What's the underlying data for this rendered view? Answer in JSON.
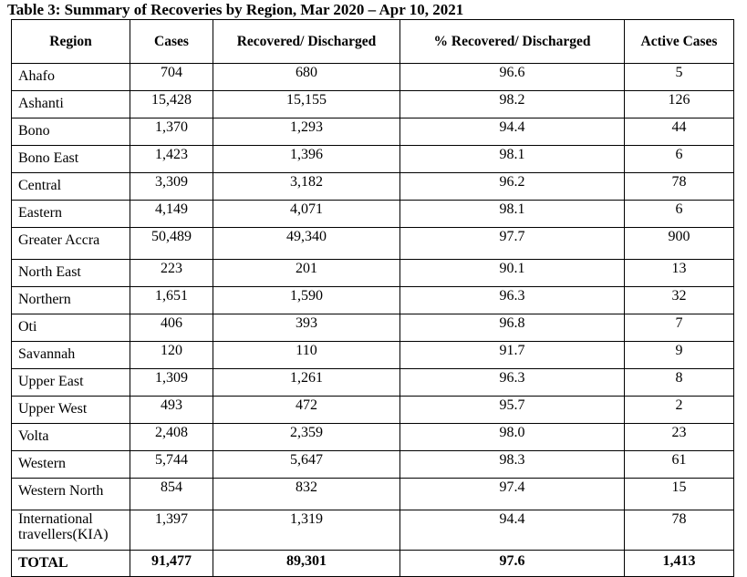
{
  "caption": "Table 3: Summary of Recoveries by Region, Mar 2020 – Apr 10, 2021",
  "headers": {
    "region": "Region",
    "cases": "Cases",
    "recovered": "Recovered/ Discharged",
    "pct": "% Recovered/ Discharged",
    "active": "Active Cases"
  },
  "rows": [
    {
      "region": "Ahafo",
      "cases": "704",
      "recovered": "680",
      "pct": "96.6",
      "active": "5"
    },
    {
      "region": "Ashanti",
      "cases": "15,428",
      "recovered": "15,155",
      "pct": "98.2",
      "active": "126"
    },
    {
      "region": "Bono",
      "cases": "1,370",
      "recovered": "1,293",
      "pct": "94.4",
      "active": "44"
    },
    {
      "region": "Bono East",
      "cases": "1,423",
      "recovered": "1,396",
      "pct": "98.1",
      "active": "6"
    },
    {
      "region": "Central",
      "cases": "3,309",
      "recovered": "3,182",
      "pct": "96.2",
      "active": "78"
    },
    {
      "region": "Eastern",
      "cases": "4,149",
      "recovered": "4,071",
      "pct": "98.1",
      "active": "6"
    },
    {
      "region": "Greater Accra",
      "cases": "50,489",
      "recovered": "49,340",
      "pct": "97.7",
      "active": "900"
    },
    {
      "region": "North East",
      "cases": "223",
      "recovered": "201",
      "pct": "90.1",
      "active": "13"
    },
    {
      "region": "Northern",
      "cases": "1,651",
      "recovered": "1,590",
      "pct": "96.3",
      "active": "32"
    },
    {
      "region": "Oti",
      "cases": "406",
      "recovered": "393",
      "pct": "96.8",
      "active": "7"
    },
    {
      "region": "Savannah",
      "cases": "120",
      "recovered": "110",
      "pct": "91.7",
      "active": "9"
    },
    {
      "region": "Upper East",
      "cases": "1,309",
      "recovered": "1,261",
      "pct": "96.3",
      "active": "8"
    },
    {
      "region": "Upper West",
      "cases": "493",
      "recovered": "472",
      "pct": "95.7",
      "active": "2"
    },
    {
      "region": "Volta",
      "cases": "2,408",
      "recovered": "2,359",
      "pct": "98.0",
      "active": "23"
    },
    {
      "region": "Western",
      "cases": "5,744",
      "recovered": "5,647",
      "pct": "98.3",
      "active": "61"
    },
    {
      "region": "Western North",
      "cases": "854",
      "recovered": "832",
      "pct": "97.4",
      "active": "15"
    },
    {
      "region": "International travellers(KIA)",
      "cases": "1,397",
      "recovered": "1,319",
      "pct": "94.4",
      "active": "78"
    }
  ],
  "total": {
    "region": "TOTAL",
    "cases": "91,477",
    "recovered": "89,301",
    "pct": "97.6",
    "active": "1,413"
  }
}
